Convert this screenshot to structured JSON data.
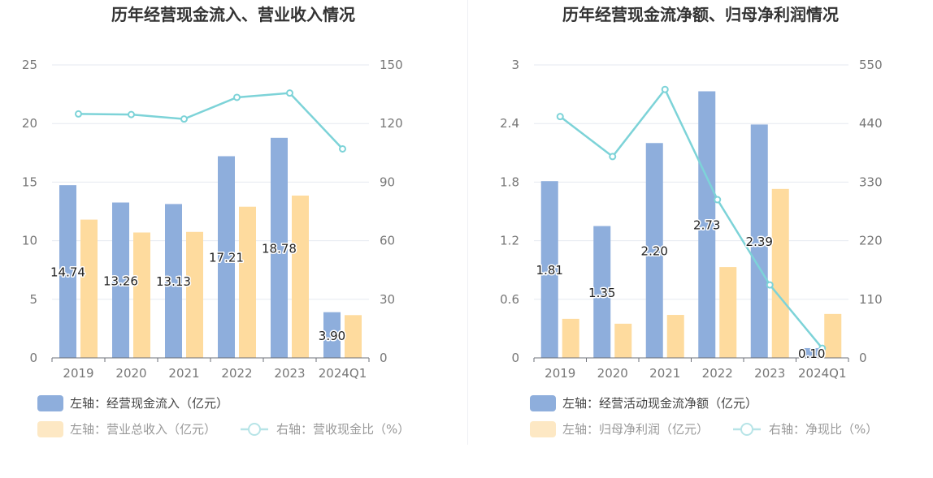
{
  "chart_data": [
    {
      "type": "bar",
      "title": "历年经营现金流入、营业收入情况",
      "categories": [
        "2019",
        "2020",
        "2021",
        "2022",
        "2023",
        "2024Q1"
      ],
      "left_axis": {
        "ticks": [
          "0",
          "5",
          "10",
          "15",
          "20",
          "25"
        ],
        "ylim": [
          0,
          25
        ]
      },
      "right_axis": {
        "ticks": [
          "0",
          "30",
          "60",
          "90",
          "120",
          "150"
        ],
        "ylim": [
          0,
          150
        ]
      },
      "series": [
        {
          "name": "左轴：经营现金流入（亿元）",
          "type": "bar",
          "axis": "left",
          "color": "#8eaedc",
          "values": [
            14.74,
            13.26,
            13.13,
            17.21,
            18.78,
            3.9
          ],
          "labels": [
            "14.74",
            "13.26",
            "13.13",
            "17.21",
            "18.78",
            "3.90"
          ]
        },
        {
          "name": "左轴：营业总收入（亿元）",
          "type": "bar",
          "axis": "left",
          "color": "#fedb9e",
          "values": [
            11.8,
            10.7,
            10.75,
            12.9,
            13.85,
            3.65
          ]
        },
        {
          "name": "右轴：营收现金比（%）",
          "type": "line",
          "axis": "right",
          "color": "#7dd3d8",
          "values": [
            124.9,
            124.6,
            122.3,
            133.4,
            135.6,
            107.0
          ]
        }
      ],
      "grid": true,
      "legend_position": "bottom"
    },
    {
      "type": "bar",
      "title": "历年经营现金流净额、归母净利润情况",
      "categories": [
        "2019",
        "2020",
        "2021",
        "2022",
        "2023",
        "2024Q1"
      ],
      "left_axis": {
        "ticks": [
          "0",
          "0.6",
          "1.2",
          "1.8",
          "2.4",
          "3"
        ],
        "ylim": [
          0,
          3
        ]
      },
      "right_axis": {
        "ticks": [
          "0",
          "110",
          "220",
          "330",
          "440",
          "550"
        ],
        "ylim": [
          0,
          550
        ]
      },
      "series": [
        {
          "name": "左轴：经营活动现金流净额（亿元）",
          "type": "bar",
          "axis": "left",
          "color": "#8eaedc",
          "values": [
            1.81,
            1.35,
            2.2,
            2.73,
            2.39,
            0.1
          ],
          "labels": [
            "1.81",
            "1.35",
            "2.20",
            "2.73",
            "2.39",
            "0.10"
          ]
        },
        {
          "name": "左轴：归母净利润（亿元）",
          "type": "bar",
          "axis": "left",
          "color": "#fedb9e",
          "values": [
            0.4,
            0.35,
            0.44,
            0.93,
            1.73,
            0.45
          ]
        },
        {
          "name": "右轴：净现比（%）",
          "type": "line",
          "axis": "right",
          "color": "#7dd3d8",
          "values": [
            453,
            378,
            504,
            297,
            137,
            18
          ]
        }
      ],
      "grid": true,
      "legend_position": "bottom"
    }
  ]
}
